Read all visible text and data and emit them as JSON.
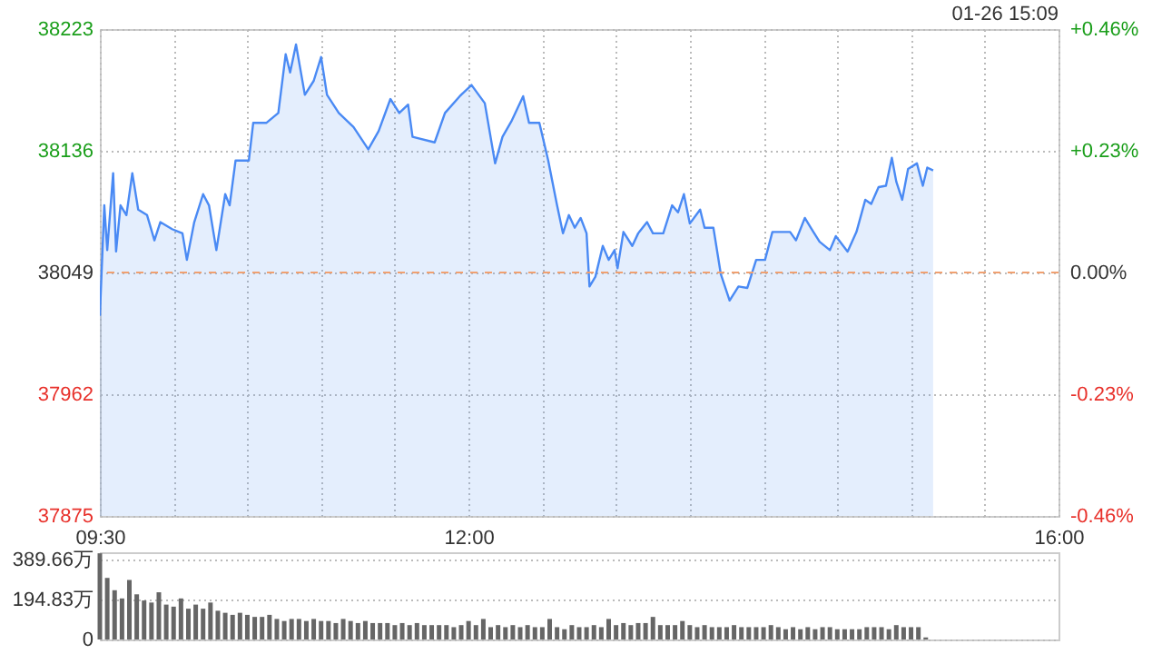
{
  "chart_data": [
    {
      "type": "area",
      "annotations": [
        "01-26 15:09"
      ],
      "x": [
        9.5,
        9.53,
        9.55,
        9.59,
        9.61,
        9.64,
        9.68,
        9.72,
        9.76,
        9.82,
        9.87,
        9.91,
        9.99,
        10.06,
        10.09,
        10.14,
        10.2,
        10.24,
        10.29,
        10.35,
        10.38,
        10.42,
        10.51,
        10.54,
        10.63,
        10.71,
        10.76,
        10.79,
        10.83,
        10.89,
        10.95,
        11.0,
        11.04,
        11.12,
        11.22,
        11.32,
        11.39,
        11.47,
        11.53,
        11.59,
        11.62,
        11.77,
        11.84,
        11.94,
        12.02,
        12.11,
        12.18,
        12.23,
        12.29,
        12.37,
        12.41,
        12.48,
        12.54,
        12.6,
        12.64,
        12.68,
        12.72,
        12.76,
        12.8,
        12.82,
        12.86,
        12.91,
        12.95,
        12.99,
        13.01,
        13.05,
        13.11,
        13.15,
        13.21,
        13.25,
        13.32,
        13.38,
        13.42,
        13.46,
        13.5,
        13.57,
        13.6,
        13.66,
        13.71,
        13.77,
        13.83,
        13.89,
        13.95,
        14.01,
        14.06,
        14.12,
        14.18,
        14.22,
        14.28,
        14.32,
        14.38,
        14.45,
        14.49,
        14.57,
        14.63,
        14.69,
        14.73,
        14.78,
        14.83,
        14.87,
        14.9,
        14.94,
        14.98,
        15.04,
        15.08,
        15.11,
        15.15
      ],
      "series": [
        {
          "color": "#4a8af4",
          "values": [
            38018,
            38097,
            38065,
            38120,
            38064,
            38097,
            38090,
            38120,
            38094,
            38090,
            38072,
            38085,
            38080,
            38077,
            38058,
            38085,
            38105,
            38097,
            38065,
            38105,
            38097,
            38129,
            38129,
            38156,
            38156,
            38163,
            38205,
            38192,
            38212,
            38176,
            38186,
            38203,
            38176,
            38163,
            38153,
            38137,
            38150,
            38173,
            38163,
            38169,
            38146,
            38142,
            38163,
            38175,
            38183,
            38170,
            38127,
            38146,
            38157,
            38175,
            38156,
            38156,
            38129,
            38097,
            38077,
            38090,
            38081,
            38088,
            38077,
            38039,
            38046,
            38068,
            38058,
            38065,
            38052,
            38078,
            38068,
            38077,
            38085,
            38077,
            38077,
            38097,
            38092,
            38105,
            38084,
            38094,
            38081,
            38081,
            38048,
            38029,
            38039,
            38038,
            38058,
            38058,
            38078,
            38078,
            38078,
            38072,
            38088,
            38081,
            38071,
            38065,
            38075,
            38064,
            38078,
            38101,
            38098,
            38110,
            38111,
            38131,
            38114,
            38101,
            38123,
            38127,
            38111,
            38124,
            38122
          ]
        }
      ],
      "xlim": [
        9.5,
        16
      ],
      "xticks": [
        {
          "value": 9.5,
          "label": "09:30"
        },
        {
          "value": 10,
          "label": null
        },
        {
          "value": 10.5,
          "label": null
        },
        {
          "value": 11,
          "label": null
        },
        {
          "value": 11.5,
          "label": null
        },
        {
          "value": 12,
          "label": "12:00"
        },
        {
          "value": 12.5,
          "label": null
        },
        {
          "value": 13,
          "label": null
        },
        {
          "value": 13.5,
          "label": null
        },
        {
          "value": 14,
          "label": null
        },
        {
          "value": 14.5,
          "label": null
        },
        {
          "value": 15,
          "label": null
        },
        {
          "value": 15.5,
          "label": null
        },
        {
          "value": 16,
          "label": "16:00"
        }
      ],
      "ylim": [
        37875,
        38223
      ],
      "yticks": [
        37875,
        37962,
        38049,
        38136,
        38223
      ],
      "y2lim": [
        -0.46,
        0.46
      ],
      "y2ticks": [
        {
          "value": -0.46,
          "label": "-0.46%"
        },
        {
          "value": -0.23,
          "label": "-0.23%"
        },
        {
          "value": 0,
          "label": "0.00%"
        },
        {
          "value": 0.23,
          "label": "+0.23%"
        },
        {
          "value": 0.46,
          "label": "+0.46%"
        }
      ],
      "ref_lines": [
        {
          "axis": "y",
          "value": 38049,
          "color": "#f0a070",
          "line_style": "dashed"
        }
      ],
      "grid": true
    },
    {
      "type": "bar",
      "color": "#666666",
      "x": [
        9.5,
        9.55,
        9.6,
        9.65,
        9.7,
        9.75,
        9.8,
        9.85,
        9.9,
        9.95,
        10.0,
        10.05,
        10.1,
        10.15,
        10.2,
        10.25,
        10.3,
        10.35,
        10.4,
        10.45,
        10.5,
        10.55,
        10.6,
        10.65,
        10.7,
        10.75,
        10.8,
        10.85,
        10.9,
        10.95,
        11.0,
        11.05,
        11.1,
        11.15,
        11.2,
        11.25,
        11.3,
        11.35,
        11.4,
        11.45,
        11.5,
        11.55,
        11.6,
        11.65,
        11.7,
        11.75,
        11.8,
        11.85,
        11.9,
        11.95,
        12.0,
        12.05,
        12.1,
        12.15,
        12.2,
        12.25,
        12.3,
        12.35,
        12.4,
        12.45,
        12.5,
        12.55,
        12.6,
        12.65,
        12.7,
        12.75,
        12.8,
        12.85,
        12.9,
        12.95,
        13.0,
        13.05,
        13.1,
        13.15,
        13.2,
        13.25,
        13.3,
        13.35,
        13.4,
        13.45,
        13.5,
        13.55,
        13.6,
        13.65,
        13.7,
        13.75,
        13.8,
        13.85,
        13.9,
        13.95,
        14.0,
        14.05,
        14.1,
        14.15,
        14.2,
        14.25,
        14.3,
        14.35,
        14.4,
        14.45,
        14.5,
        14.55,
        14.6,
        14.65,
        14.7,
        14.75,
        14.8,
        14.85,
        14.9,
        14.95,
        15.0,
        15.05,
        15.1
      ],
      "values": [
        420,
        300,
        240,
        200,
        290,
        220,
        190,
        180,
        230,
        170,
        160,
        200,
        150,
        170,
        150,
        180,
        140,
        130,
        120,
        130,
        120,
        110,
        110,
        120,
        100,
        90,
        100,
        100,
        90,
        100,
        90,
        90,
        80,
        100,
        90,
        80,
        90,
        80,
        80,
        80,
        70,
        80,
        70,
        80,
        70,
        70,
        70,
        70,
        60,
        70,
        90,
        70,
        100,
        60,
        70,
        60,
        70,
        60,
        70,
        60,
        60,
        100,
        60,
        50,
        70,
        60,
        60,
        70,
        60,
        100,
        70,
        80,
        70,
        80,
        80,
        110,
        70,
        70,
        70,
        90,
        70,
        60,
        70,
        60,
        60,
        60,
        70,
        60,
        60,
        60,
        60,
        70,
        60,
        50,
        60,
        50,
        60,
        50,
        60,
        60,
        50,
        50,
        50,
        50,
        60,
        60,
        60,
        50,
        70,
        60,
        60,
        60,
        10
      ],
      "xlim": [
        9.5,
        16
      ],
      "ylim": [
        0,
        425
      ],
      "yticks": [
        0,
        {
          "value": 194.83,
          "label": "194.83万"
        },
        {
          "value": 389.66,
          "label": "389.66万"
        }
      ],
      "grid": "y",
      "tick_labels": "y"
    }
  ]
}
